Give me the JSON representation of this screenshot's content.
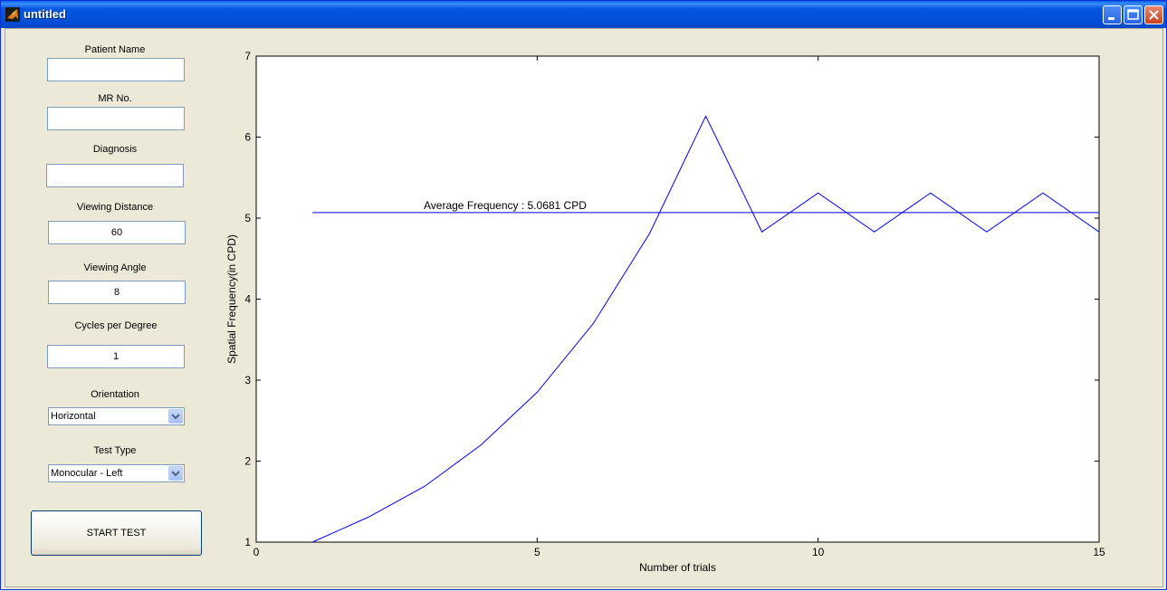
{
  "window": {
    "title": "untitled"
  },
  "form": {
    "patient_name_label": "Patient Name",
    "patient_name_value": "",
    "mr_no_label": "MR No.",
    "mr_no_value": "",
    "diagnosis_label": "Diagnosis",
    "diagnosis_value": "",
    "viewing_distance_label": "Viewing Distance",
    "viewing_distance_value": "60",
    "viewing_angle_label": "Viewing Angle",
    "viewing_angle_value": "8",
    "cycles_label": "Cycles per Degree",
    "cycles_value": "1",
    "orientation_label": "Orientation",
    "orientation_value": "Horizontal",
    "test_type_label": "Test Type",
    "test_type_value": "Monocular - Left",
    "start_label": "START TEST"
  },
  "colors": {
    "line": "#0000ff",
    "titlebar": "#0455e0",
    "background": "#ece9d8"
  },
  "chart_data": {
    "type": "line",
    "xlabel": "Number of trials",
    "ylabel": "Spatial Frequency(in CPD)",
    "xlim": [
      0,
      15
    ],
    "ylim": [
      1,
      7
    ],
    "xticks": [
      0,
      5,
      10,
      15
    ],
    "yticks": [
      1,
      2,
      3,
      4,
      5,
      6,
      7
    ],
    "grid": false,
    "series": [
      {
        "x": [
          1,
          2,
          3,
          4,
          5,
          6,
          7,
          8,
          9,
          10,
          11,
          12,
          13,
          14,
          15
        ],
        "values": [
          1.0,
          1.31,
          1.69,
          2.2,
          2.85,
          3.7,
          4.81,
          6.26,
          4.83,
          5.31,
          4.83,
          5.31,
          4.83,
          5.31,
          4.83
        ]
      }
    ],
    "average_line": {
      "value": 5.0681,
      "x_start": 1,
      "x_end": 15
    },
    "annotation": "Average Frequency : 5.0681 CPD"
  }
}
